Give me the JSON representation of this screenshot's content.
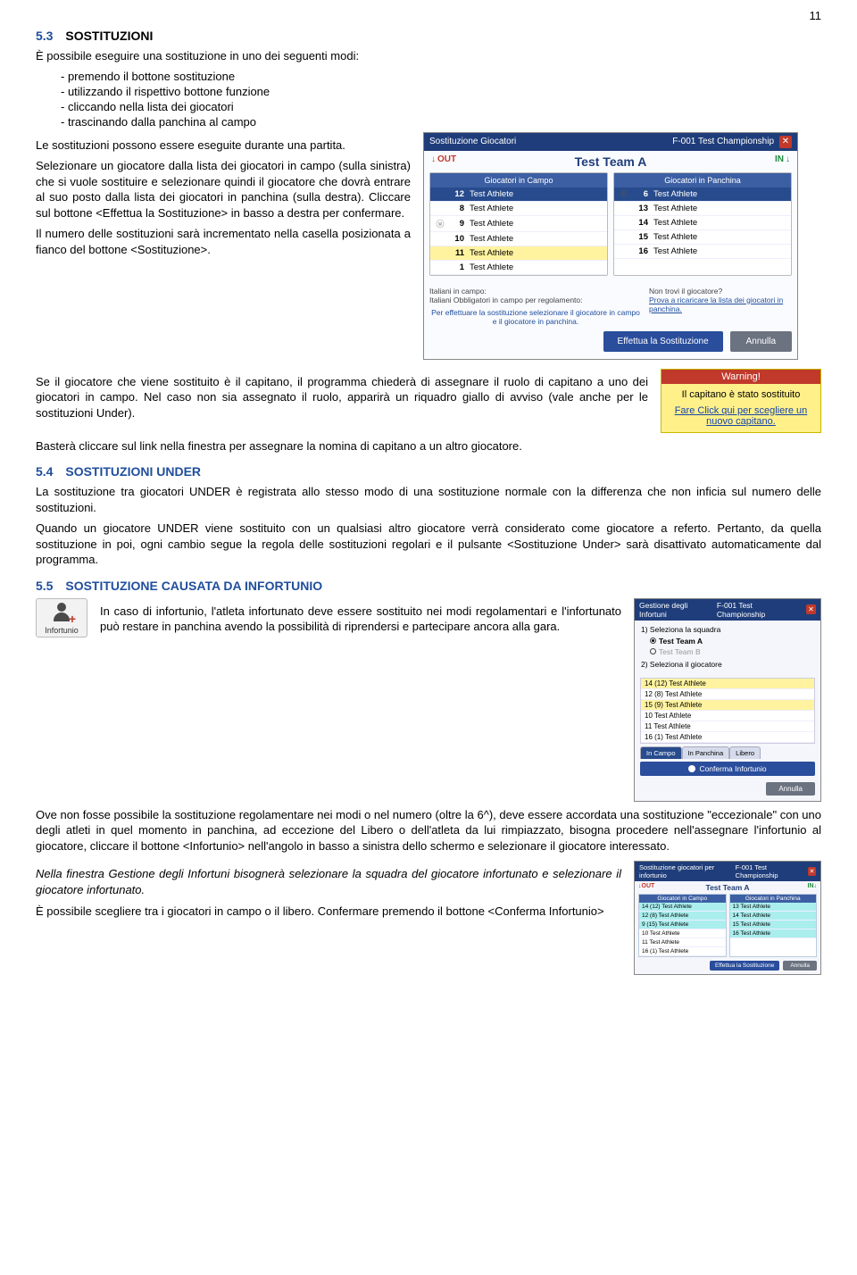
{
  "page_number": "11",
  "sections": {
    "s53": {
      "num": "5.3",
      "title": "SOSTITUZIONI"
    },
    "s54": {
      "num": "5.4",
      "title": "SOSTITUZIONI UNDER"
    },
    "s55": {
      "num": "5.5",
      "title": "SOSTITUZIONE CAUSATA DA INFORTUNIO"
    }
  },
  "p_intro": "È possibile eseguire una sostituzione in uno dei seguenti modi:",
  "bullets": [
    "premendo il bottone sostituzione",
    "utilizzando il rispettivo bottone funzione",
    "cliccando nella lista dei giocatori",
    "trascinando dalla panchina al campo"
  ],
  "p_eseg": "Le sostituzioni possono essere eseguite durante una partita.",
  "p_select": "Selezionare un giocatore dalla lista dei giocatori in campo (sulla sinistra) che si vuole sostituire e selezionare quindi il giocatore che dovrà entrare al suo posto dalla lista dei giocatori in panchina (sulla destra). Cliccare sul bottone <Effettua la Sostituzione> in basso a destra per confermare.",
  "p_count": "Il numero delle sostituzioni sarà incrementato nella casella posizionata a fianco del bottone <Sostituzione>.",
  "p_captain1": "Se il giocatore che viene sostituito è il capitano, il programma chiederà di assegnare il ruolo di capitano a uno dei giocatori in campo. Nel caso non sia assegnato il ruolo, apparirà un riquadro giallo di avviso (vale anche per le sostituzioni Under).",
  "p_captain2": "Basterà cliccare sul link nella finestra per assegnare la nomina di capitano a un altro giocatore.",
  "p_under1": "La sostituzione tra giocatori UNDER è registrata allo stesso modo di una sostituzione normale con la differenza che non inficia sul numero delle sostituzioni.",
  "p_under2": "Quando un giocatore UNDER viene sostituito con un qualsiasi altro giocatore verrà considerato come giocatore a referto. Pertanto, da quella sostituzione in poi, ogni cambio segue la regola delle sostituzioni regolari e il pulsante <Sostituzione Under> sarà disattivato automaticamente dal programma.",
  "p_inj1": "In caso di infortunio, l'atleta infortunato deve essere sostituito nei modi regolamentari e l'infortunato può restare in panchina avendo la possibilità di riprendersi e partecipare ancora alla gara.",
  "p_inj2": "Ove non fosse possibile la sostituzione regolamentare nei modi o nel numero (oltre la 6^), deve essere accordata una sostituzione \"eccezionale\" con uno degli atleti in quel momento in panchina, ad eccezione del Libero o dell'atleta da lui rimpiazzato, bisogna procedere nell'assegnare l'infortunio al giocatore, cliccare il bottone <Infortunio> nell'angolo in basso a sinistra dello schermo e selezionare il giocatore interessato.",
  "p_inj3": "Nella finestra Gestione degli Infortuni bisognerà selezionare la squadra del giocatore infortunato e selezionare il giocatore infortunato.",
  "p_inj4": "È possibile scegliere tra i giocatori in campo o il libero. Confermare premendo il bottone <Conferma Infortunio>",
  "dlg": {
    "title": "Sostituzione Giocatori",
    "match": "F-001  Test Championship",
    "team": "Test Team A",
    "out": "OUT",
    "in": "IN",
    "hdr_left": "Giocatori in Campo",
    "hdr_right": "Giocatori in Panchina",
    "left": [
      {
        "r": "",
        "n": "12",
        "name": "Test Athlete",
        "cls": "active"
      },
      {
        "r": "",
        "n": "8",
        "name": "Test Athlete"
      },
      {
        "r": "ⓤ",
        "n": "9",
        "name": "Test Athlete"
      },
      {
        "r": "",
        "n": "10",
        "name": "Test Athlete"
      },
      {
        "r": "",
        "n": "11",
        "name": "Test Athlete",
        "cls": "hl"
      },
      {
        "r": "",
        "n": "1",
        "name": "Test Athlete"
      }
    ],
    "right": [
      {
        "r": "©",
        "n": "6",
        "name": "Test Athlete",
        "cls": "active"
      },
      {
        "r": "",
        "n": "13",
        "name": "Test Athlete"
      },
      {
        "r": "",
        "n": "14",
        "name": "Test Athlete"
      },
      {
        "r": "",
        "n": "15",
        "name": "Test Athlete"
      },
      {
        "r": "",
        "n": "16",
        "name": "Test Athlete"
      }
    ],
    "foot_l1": "Italiani in campo:",
    "foot_l2": "Italiani Obbligatori in campo per regolamento:",
    "foot_hint": "Per effettuare la sostituzione selezionare il giocatore in campo e il giocatore in panchina.",
    "foot_r1": "Non trovi il giocatore?",
    "foot_r2": "Prova a ricaricare la lista dei giocatori in panchina.",
    "btn_go": "Effettua la Sostituzione",
    "btn_cancel": "Annulla"
  },
  "warn": {
    "hdr": "Warning!",
    "msg": "Il capitano è stato sostituito",
    "link": "Fare Click qui per scegliere un nuovo capitano."
  },
  "injury_btn": "Infortunio",
  "injmgr": {
    "title": "Gestione degli Infortuni",
    "match": "F-001  Test Championship",
    "step1": "1) Seleziona la squadra",
    "teamA": "Test Team A",
    "teamB": "Test Team B",
    "step2": "2) Seleziona il giocatore",
    "rows": [
      {
        "t": "14 (12) Test Athlete",
        "cls": "hl"
      },
      {
        "t": "12 (8)  Test Athlete"
      },
      {
        "t": "15 (9)  Test Athlete",
        "cls": "hl"
      },
      {
        "t": "10       Test Athlete"
      },
      {
        "t": "11       Test Athlete"
      },
      {
        "t": "16 (1)  Test Athlete"
      }
    ],
    "tab_field": "In Campo",
    "tab_bench": "In Panchina",
    "tab_lib": "Libero",
    "confirm": "Conferma Infortunio",
    "cancel": "Annulla"
  },
  "tiny": {
    "title": "Sostituzione giocatori per infortunio",
    "match": "F-001  Test Championship",
    "team": "Test Team A",
    "out": "OUT",
    "in": "IN",
    "hl": "Giocatori in Campo",
    "hr": "Giocatori in Panchina",
    "l": [
      "14 (12) Test Athlete",
      "12 (8)  Test Athlete",
      "9 (15) Test Athlete",
      "10 Test Athlete",
      "11 Test Athlete",
      "16 (1) Test Athlete"
    ],
    "r": [
      "13 Test Athlete",
      "14 Test Athlete",
      "15 Test Athlete",
      "16 Test Athlete"
    ],
    "go": "Effettua la Sostituzione",
    "cancel": "Annulla"
  }
}
